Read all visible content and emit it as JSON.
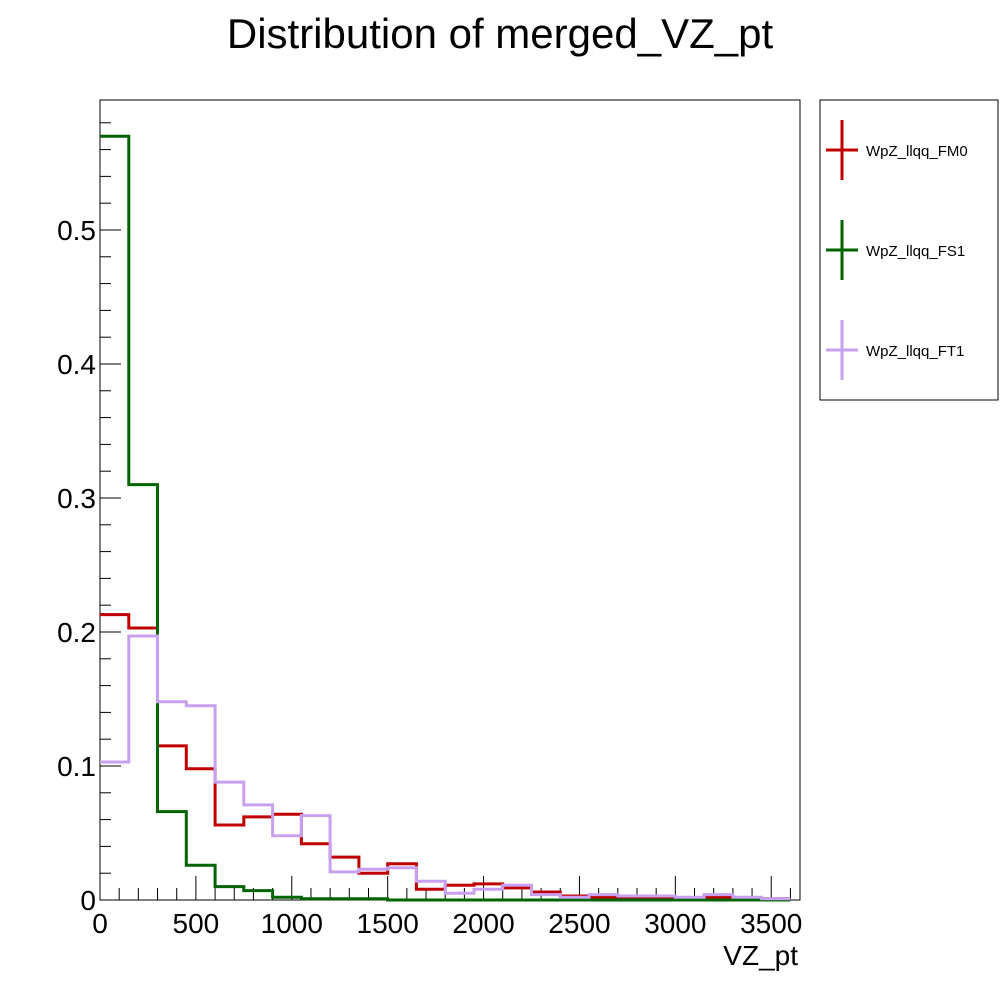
{
  "chart_data": {
    "type": "line",
    "title": "Distribution of merged_VZ_pt",
    "xlabel": "VZ_pt",
    "ylabel": "",
    "xlim": [
      0,
      3650
    ],
    "ylim": [
      0,
      0.597
    ],
    "bin_width": 150,
    "x_ticks": [
      0,
      500,
      1000,
      1500,
      2000,
      2500,
      3000,
      3500
    ],
    "y_ticks": [
      0,
      0.1,
      0.2,
      0.3,
      0.4,
      0.5
    ],
    "x_tick_labels": [
      "0",
      "500",
      "1000",
      "1500",
      "2000",
      "2500",
      "3000",
      "3500"
    ],
    "y_tick_labels": [
      "0",
      "0.1",
      "0.2",
      "0.3",
      "0.4",
      "0.5"
    ],
    "legend_position": "right",
    "series": [
      {
        "name": "WpZ_llqq_FM0",
        "color": "#c00000",
        "values": [
          0.213,
          0.203,
          0.115,
          0.098,
          0.056,
          0.062,
          0.064,
          0.042,
          0.032,
          0.02,
          0.027,
          0.008,
          0.011,
          0.012,
          0.009,
          0.006,
          0.003,
          0.002,
          0.002,
          0.002,
          0.001,
          0.002,
          0.001,
          0.001
        ]
      },
      {
        "name": "WpZ_llqq_FS1",
        "color": "#006400",
        "values": [
          0.57,
          0.31,
          0.066,
          0.026,
          0.01,
          0.007,
          0.002,
          0.001,
          0.001,
          0.001,
          0.0,
          0.0,
          0.0,
          0.0,
          0.0,
          0.0,
          0.0,
          0.0,
          0.0,
          0.0,
          0.0,
          0.0,
          0.0,
          0.0
        ]
      },
      {
        "name": "WpZ_llqq_FT1",
        "color": "#c8a0f0",
        "values": [
          0.103,
          0.197,
          0.148,
          0.145,
          0.088,
          0.071,
          0.048,
          0.063,
          0.021,
          0.023,
          0.024,
          0.014,
          0.005,
          0.008,
          0.011,
          0.004,
          0.002,
          0.004,
          0.003,
          0.003,
          0.002,
          0.004,
          0.002,
          0.001
        ]
      }
    ]
  }
}
